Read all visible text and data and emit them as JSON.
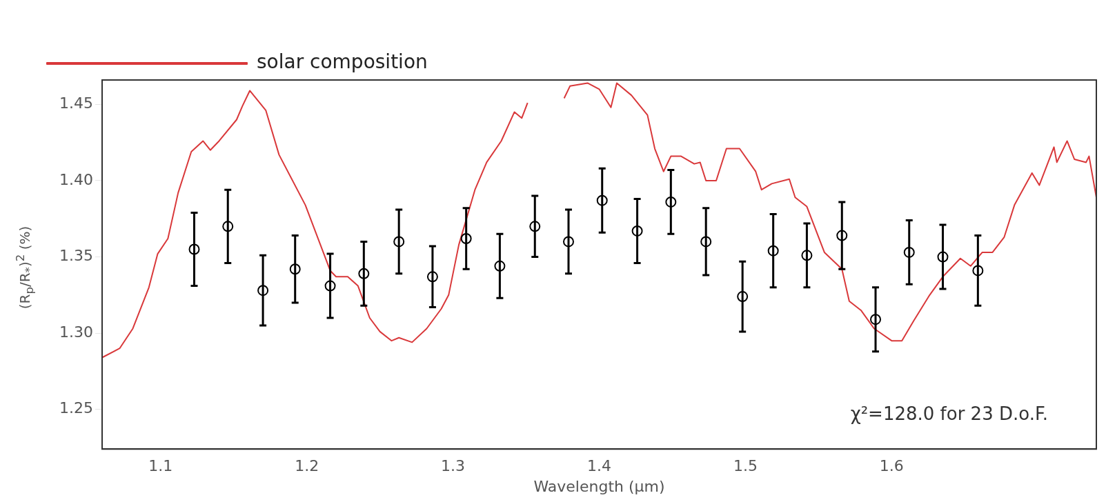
{
  "chart_data": {
    "type": "scatter",
    "xlabel": "Wavelength (μm)",
    "ylabel": "(R$_{p}$/R$_{*}$)$^{2}$ (%)",
    "xlim": [
      1.06,
      1.74
    ],
    "ylim": [
      1.224,
      1.466
    ],
    "xticks": [
      1.1,
      1.2,
      1.3,
      1.4,
      1.5,
      1.6
    ],
    "yticks": [
      1.25,
      {
        "value": 1.3,
        "label": "1.30"
      },
      1.35,
      {
        "value": 1.4,
        "label": "1.40"
      },
      1.45
    ],
    "grid": false,
    "legend": "top",
    "line_style": "solid",
    "annotations": [
      "χ²=128.0 for 23 D.o.F."
    ],
    "series": [
      {
        "marker": "circle",
        "color": "#000000",
        "x": [
          1.123,
          1.146,
          1.17,
          1.192,
          1.216,
          1.239,
          1.263,
          1.286,
          1.309,
          1.332,
          1.356,
          1.379,
          1.402,
          1.426,
          1.449,
          1.473,
          1.498,
          1.519,
          1.542,
          1.566,
          1.589,
          1.612,
          1.635,
          1.659
        ],
        "values": [
          1.355,
          1.37,
          1.328,
          1.342,
          1.331,
          1.339,
          1.36,
          1.337,
          1.362,
          1.344,
          1.37,
          1.36,
          1.387,
          1.367,
          1.386,
          1.36,
          1.324,
          1.354,
          1.351,
          1.364,
          1.309,
          1.353,
          1.35,
          1.341
        ],
        "errors": [
          0.024,
          0.024,
          0.023,
          0.022,
          0.021,
          0.021,
          0.021,
          0.02,
          0.02,
          0.021,
          0.02,
          0.021,
          0.021,
          0.021,
          0.021,
          0.022,
          0.023,
          0.024,
          0.021,
          0.022,
          0.021,
          0.021,
          0.021,
          0.023
        ]
      },
      {
        "type": "line",
        "marker": "none",
        "name": "solar composition",
        "color": "#d9383a",
        "x": [
          1.06,
          1.072,
          1.081,
          1.092,
          1.098,
          1.105,
          1.112,
          1.121,
          1.129,
          1.134,
          1.14,
          1.152,
          1.156,
          1.161,
          1.172,
          1.181,
          1.199,
          1.216,
          1.22,
          1.228,
          1.235,
          1.243,
          1.25,
          1.258,
          1.263,
          1.272,
          1.282,
          1.292,
          1.297,
          1.304,
          1.315,
          1.323,
          1.333,
          1.342,
          1.347,
          1.351,
          1.352,
          1.374,
          1.376,
          1.38,
          1.392,
          1.4,
          1.408,
          1.412,
          1.422,
          1.433,
          1.438,
          1.444,
          1.449,
          1.456,
          1.465,
          1.469,
          1.473,
          1.48,
          1.487,
          1.496,
          1.507,
          1.511,
          1.518,
          1.53,
          1.534,
          1.542,
          1.554,
          1.566,
          1.571,
          1.579,
          1.588,
          1.6,
          1.607,
          1.615,
          1.626,
          1.635,
          1.647,
          1.654,
          1.662,
          1.669,
          1.677,
          1.684,
          1.696,
          1.701,
          1.711,
          1.713,
          1.72,
          1.725,
          1.733,
          1.735,
          1.74
        ],
        "values": [
          1.284,
          1.29,
          1.303,
          1.33,
          1.352,
          1.362,
          1.392,
          1.419,
          1.426,
          1.42,
          1.426,
          1.44,
          1.449,
          1.459,
          1.446,
          1.417,
          1.384,
          1.341,
          1.337,
          1.337,
          1.331,
          1.31,
          1.301,
          1.295,
          1.297,
          1.294,
          1.303,
          1.316,
          1.325,
          1.358,
          1.394,
          1.412,
          1.426,
          1.445,
          1.441,
          1.451,
          null,
          null,
          1.454,
          1.462,
          1.464,
          1.46,
          1.448,
          1.464,
          1.456,
          1.443,
          1.421,
          1.406,
          1.416,
          1.416,
          1.411,
          1.412,
          1.4,
          1.4,
          1.421,
          1.421,
          1.406,
          1.394,
          1.398,
          1.401,
          1.389,
          1.383,
          1.353,
          1.342,
          1.321,
          1.315,
          1.303,
          1.295,
          1.295,
          1.308,
          1.325,
          1.337,
          1.349,
          1.344,
          1.353,
          1.353,
          1.363,
          1.384,
          1.405,
          1.397,
          1.422,
          1.412,
          1.426,
          1.414,
          1.412,
          1.416,
          1.389
        ]
      }
    ]
  }
}
